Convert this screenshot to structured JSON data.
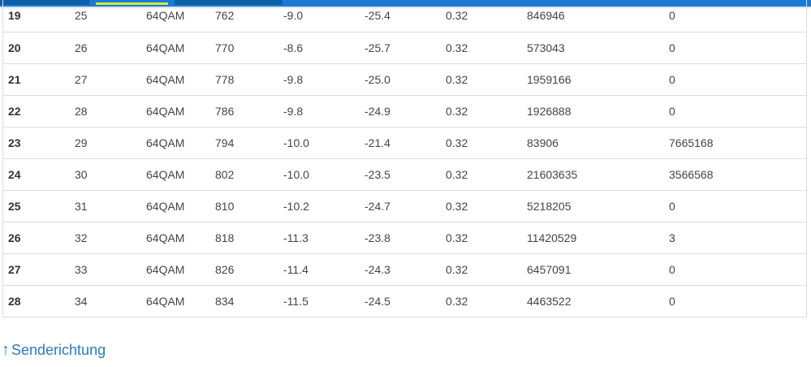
{
  "table": {
    "rows": [
      [
        "19",
        "25",
        "64QAM",
        "762",
        "-9.0",
        "-25.4",
        "0.32",
        "846946",
        "0"
      ],
      [
        "20",
        "26",
        "64QAM",
        "770",
        "-8.6",
        "-25.7",
        "0.32",
        "573043",
        "0"
      ],
      [
        "21",
        "27",
        "64QAM",
        "778",
        "-9.8",
        "-25.0",
        "0.32",
        "1959166",
        "0"
      ],
      [
        "22",
        "28",
        "64QAM",
        "786",
        "-9.8",
        "-24.9",
        "0.32",
        "1926888",
        "0"
      ],
      [
        "23",
        "29",
        "64QAM",
        "794",
        "-10.0",
        "-21.4",
        "0.32",
        "83906",
        "7665168"
      ],
      [
        "24",
        "30",
        "64QAM",
        "802",
        "-10.0",
        "-23.5",
        "0.32",
        "21603635",
        "3566568"
      ],
      [
        "25",
        "31",
        "64QAM",
        "810",
        "-10.2",
        "-24.7",
        "0.32",
        "5218205",
        "0"
      ],
      [
        "26",
        "32",
        "64QAM",
        "818",
        "-11.3",
        "-23.8",
        "0.32",
        "11420529",
        "3"
      ],
      [
        "27",
        "33",
        "64QAM",
        "826",
        "-11.4",
        "-24.3",
        "0.32",
        "6457091",
        "0"
      ],
      [
        "28",
        "34",
        "64QAM",
        "834",
        "-11.5",
        "-24.5",
        "0.32",
        "4463522",
        "0"
      ]
    ]
  },
  "footer_link": {
    "icon": "arrow-up-icon",
    "arrow": "↑",
    "label": "Senderichtung"
  },
  "colors": {
    "accent": "#1a7ad4",
    "tab_underline": "#d9e83a",
    "link": "#2b7bc0"
  }
}
